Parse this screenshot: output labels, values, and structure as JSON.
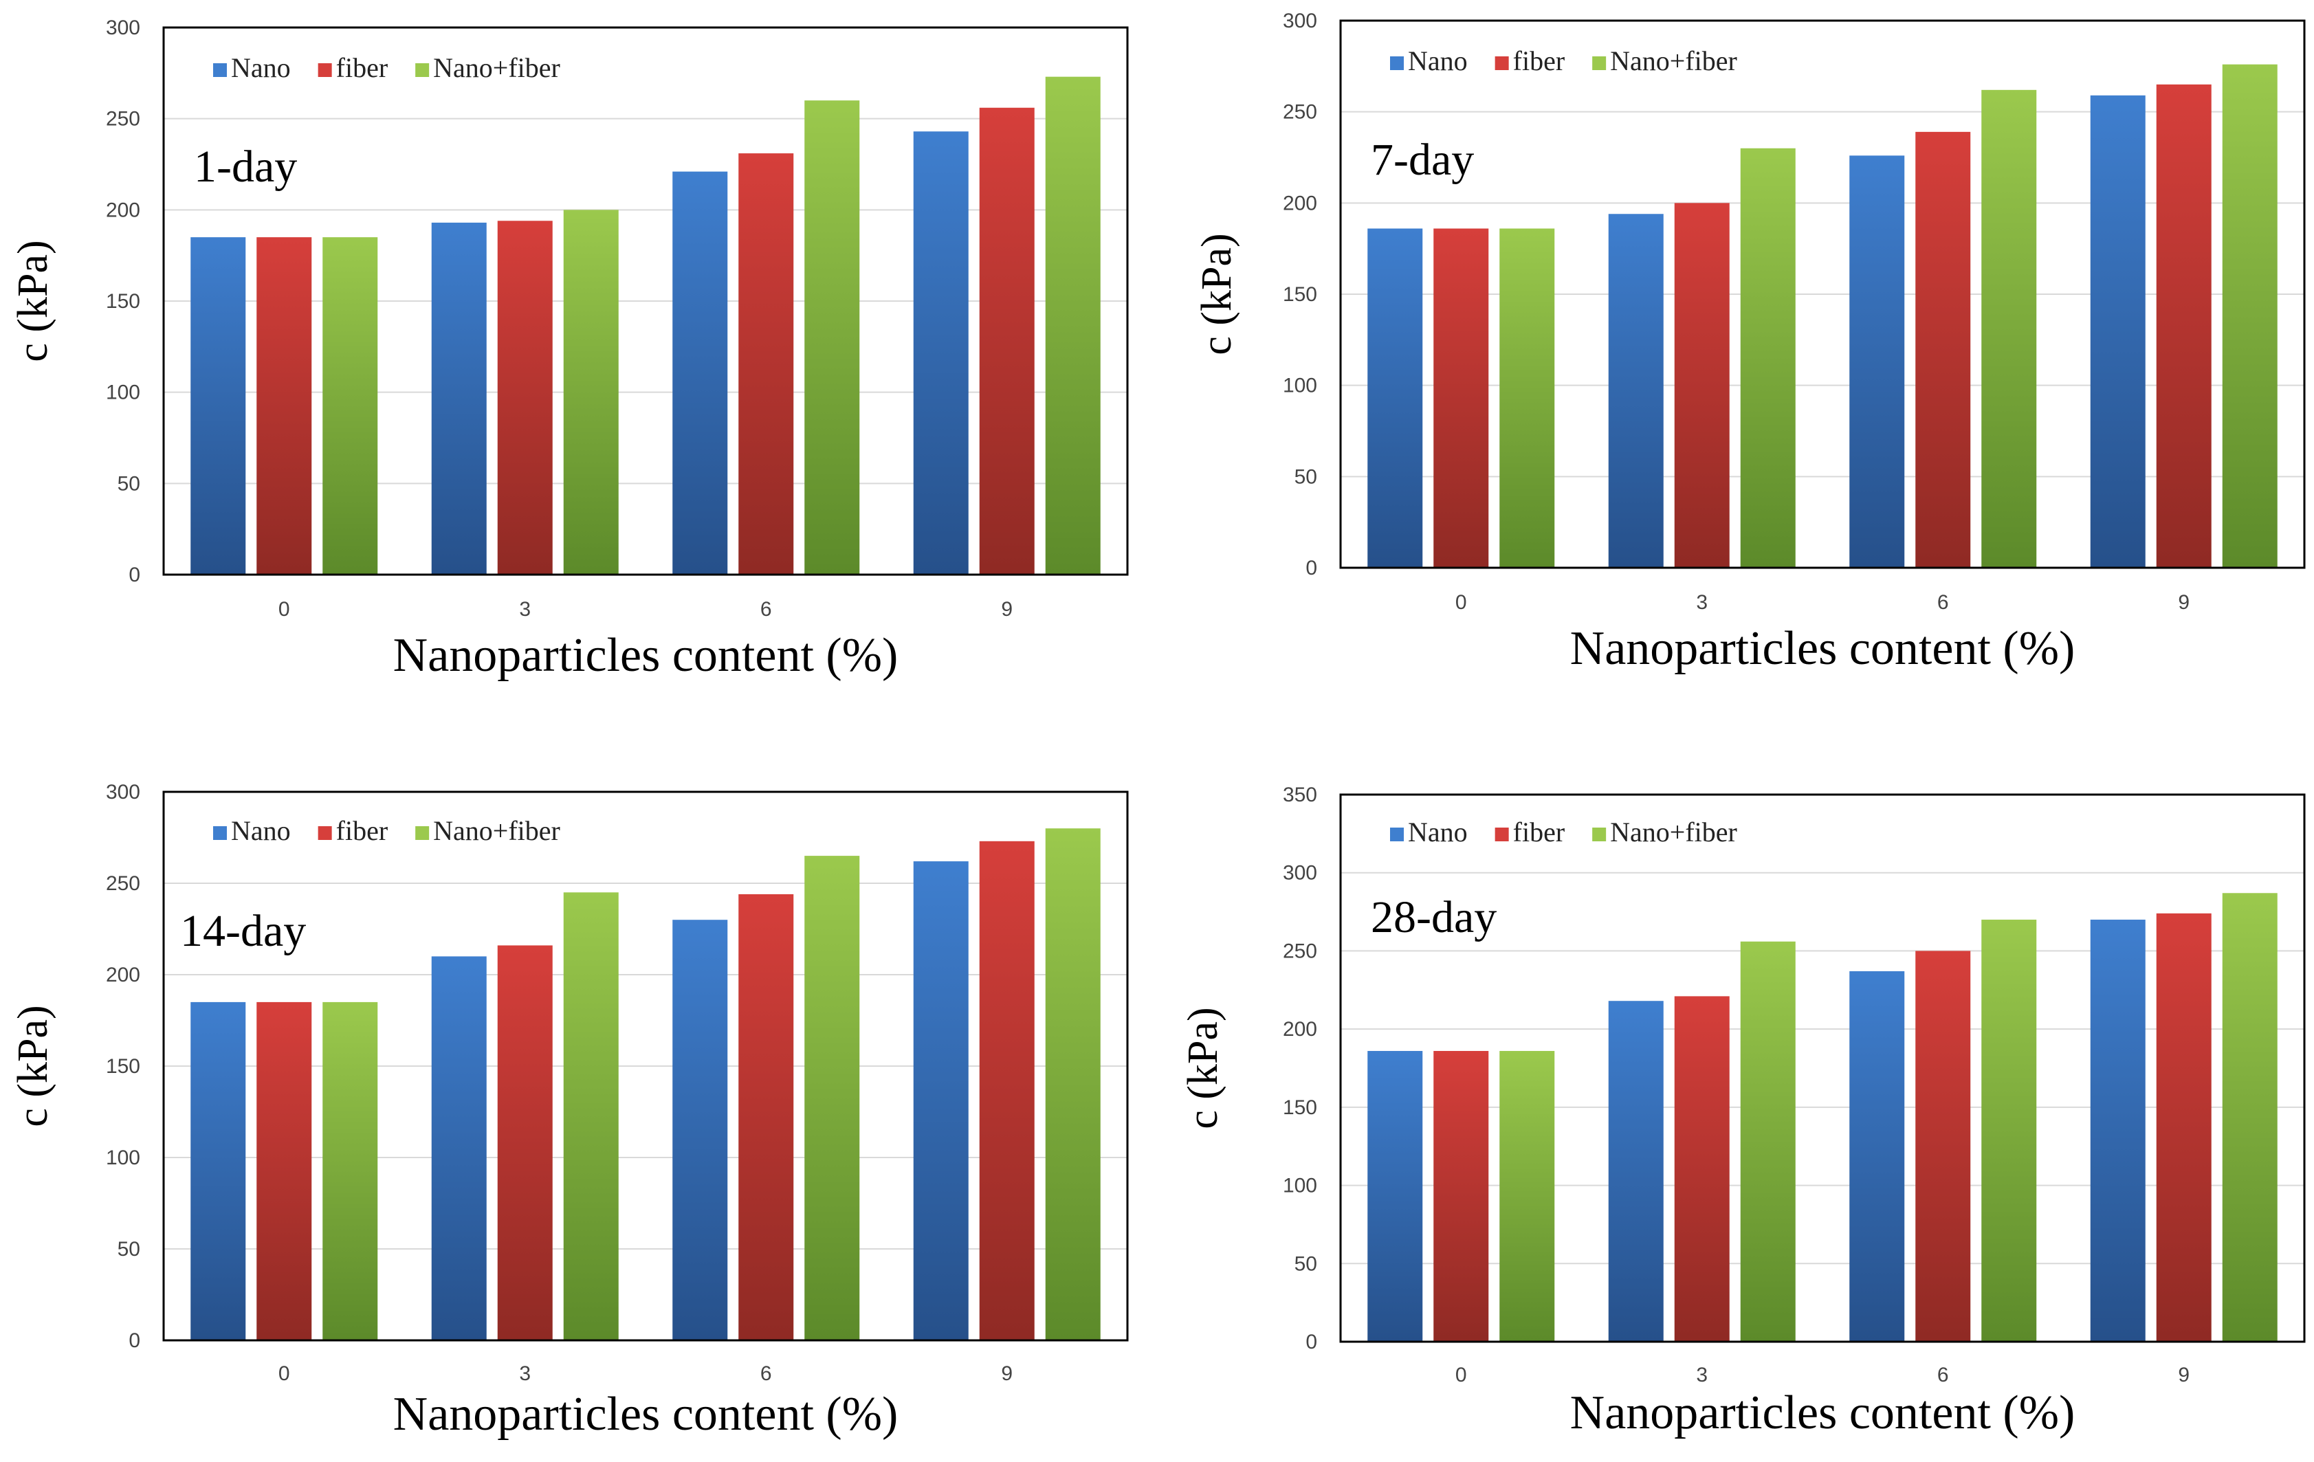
{
  "colors": {
    "Nano": [
      "#3f7fcf",
      "#26508a"
    ],
    "fiber": [
      "#d63f3b",
      "#8f2a24"
    ],
    "Nano+fiber": [
      "#9bc94d",
      "#5c8a2a"
    ]
  },
  "chart_data": [
    {
      "type": "bar",
      "annotation": "1-day",
      "categories": [
        "0",
        "3",
        "6",
        "9"
      ],
      "series": [
        {
          "name": "Nano",
          "values": [
            185,
            193,
            221,
            243
          ]
        },
        {
          "name": "fiber",
          "values": [
            185,
            194,
            231,
            256
          ]
        },
        {
          "name": "Nano+fiber",
          "values": [
            185,
            200,
            260,
            273
          ]
        }
      ],
      "xlabel": "Nanoparticles content (%)",
      "ylabel": "c (kPa)",
      "ylim": [
        0,
        300
      ],
      "yticks": [
        0,
        50,
        100,
        150,
        200,
        250,
        300
      ],
      "grid": true,
      "legend": "top-left"
    },
    {
      "type": "bar",
      "annotation": "7-day",
      "categories": [
        "0",
        "3",
        "6",
        "9"
      ],
      "series": [
        {
          "name": "Nano",
          "values": [
            186,
            194,
            226,
            259
          ]
        },
        {
          "name": "fiber",
          "values": [
            186,
            200,
            239,
            265
          ]
        },
        {
          "name": "Nano+fiber",
          "values": [
            186,
            230,
            262,
            276
          ]
        }
      ],
      "xlabel": "Nanoparticles content (%)",
      "ylabel": "c (kPa)",
      "ylim": [
        0,
        300
      ],
      "yticks": [
        0,
        50,
        100,
        150,
        200,
        250,
        300
      ],
      "grid": true,
      "legend": "top-left"
    },
    {
      "type": "bar",
      "annotation": "14-day",
      "categories": [
        "0",
        "3",
        "6",
        "9"
      ],
      "series": [
        {
          "name": "Nano",
          "values": [
            185,
            210,
            230,
            262
          ]
        },
        {
          "name": "fiber",
          "values": [
            185,
            216,
            244,
            273
          ]
        },
        {
          "name": "Nano+fiber",
          "values": [
            185,
            245,
            265,
            280
          ]
        }
      ],
      "xlabel": "Nanoparticles content (%)",
      "ylabel": "c (kPa)",
      "ylim": [
        0,
        300
      ],
      "yticks": [
        0,
        50,
        100,
        150,
        200,
        250,
        300
      ],
      "grid": true,
      "legend": "top-left"
    },
    {
      "type": "bar",
      "annotation": "28-day",
      "categories": [
        "0",
        "3",
        "6",
        "9"
      ],
      "series": [
        {
          "name": "Nano",
          "values": [
            186,
            218,
            237,
            270
          ]
        },
        {
          "name": "fiber",
          "values": [
            186,
            221,
            250,
            274
          ]
        },
        {
          "name": "Nano+fiber",
          "values": [
            186,
            256,
            270,
            287
          ]
        }
      ],
      "xlabel": "Nanoparticles content (%)",
      "ylabel": "c (kPa)",
      "ylim": [
        0,
        350
      ],
      "yticks": [
        0,
        50,
        100,
        150,
        200,
        250,
        300,
        350
      ],
      "grid": true,
      "legend": "top-left"
    }
  ]
}
